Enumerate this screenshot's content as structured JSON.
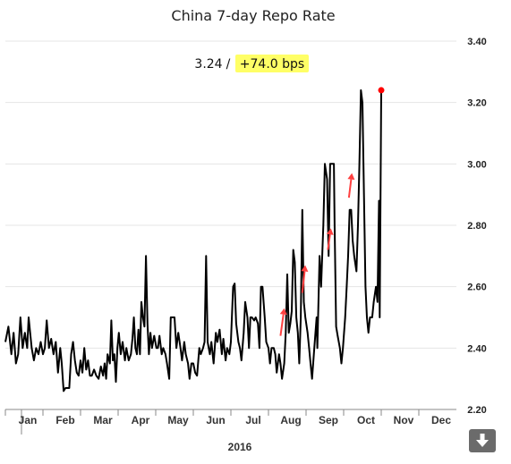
{
  "chart_data": {
    "type": "line",
    "title": "China 7-day Repo Rate",
    "readout": {
      "value": "3.24",
      "separator": "/",
      "change": "+74.0 bps"
    },
    "x_year_label": "2016",
    "x_tick_labels": [
      "Jan",
      "Feb",
      "Mar",
      "Apr",
      "May",
      "Jun",
      "Jul",
      "Aug",
      "Sep",
      "Oct",
      "Nov",
      "Dec"
    ],
    "y_tick_labels": [
      "2.20",
      "2.40",
      "2.60",
      "2.80",
      "3.00",
      "3.20",
      "3.40"
    ],
    "ylim": [
      2.2,
      3.4
    ],
    "xlim": [
      0,
      12
    ],
    "grid": true,
    "highlight_color": "#ffff66",
    "line_color": "#000000",
    "marker_color": "#ff0000",
    "arrow_color": "#ff4040",
    "series": [
      {
        "points": [
          [
            0.0,
            2.42
          ],
          [
            0.08,
            2.47
          ],
          [
            0.16,
            2.38
          ],
          [
            0.22,
            2.45
          ],
          [
            0.28,
            2.35
          ],
          [
            0.34,
            2.38
          ],
          [
            0.4,
            2.5
          ],
          [
            0.46,
            2.4
          ],
          [
            0.52,
            2.45
          ],
          [
            0.58,
            2.4
          ],
          [
            0.62,
            2.5
          ],
          [
            0.7,
            2.4
          ],
          [
            0.76,
            2.36
          ],
          [
            0.82,
            2.4
          ],
          [
            0.88,
            2.38
          ],
          [
            0.94,
            2.42
          ],
          [
            1.0,
            2.38
          ],
          [
            1.05,
            2.4
          ],
          [
            1.1,
            2.49
          ],
          [
            1.16,
            2.4
          ],
          [
            1.22,
            2.43
          ],
          [
            1.28,
            2.38
          ],
          [
            1.34,
            2.42
          ],
          [
            1.4,
            2.32
          ],
          [
            1.46,
            2.4
          ],
          [
            1.5,
            2.35
          ],
          [
            1.55,
            2.26
          ],
          [
            1.6,
            2.27
          ],
          [
            1.66,
            2.27
          ],
          [
            1.7,
            2.27
          ],
          [
            1.75,
            2.38
          ],
          [
            1.8,
            2.42
          ],
          [
            1.85,
            2.36
          ],
          [
            1.9,
            2.32
          ],
          [
            1.95,
            2.31
          ],
          [
            2.0,
            2.36
          ],
          [
            2.05,
            2.32
          ],
          [
            2.1,
            2.4
          ],
          [
            2.15,
            2.33
          ],
          [
            2.2,
            2.36
          ],
          [
            2.25,
            2.31
          ],
          [
            2.3,
            2.31
          ],
          [
            2.36,
            2.33
          ],
          [
            2.42,
            2.31
          ],
          [
            2.48,
            2.3
          ],
          [
            2.54,
            2.34
          ],
          [
            2.6,
            2.31
          ],
          [
            2.64,
            2.35
          ],
          [
            2.68,
            2.3
          ],
          [
            2.72,
            2.38
          ],
          [
            2.78,
            2.35
          ],
          [
            2.82,
            2.49
          ],
          [
            2.86,
            2.36
          ],
          [
            2.9,
            2.38
          ],
          [
            2.94,
            2.29
          ],
          [
            2.98,
            2.4
          ],
          [
            3.02,
            2.45
          ],
          [
            3.07,
            2.38
          ],
          [
            3.12,
            2.42
          ],
          [
            3.18,
            2.36
          ],
          [
            3.22,
            2.4
          ],
          [
            3.28,
            2.36
          ],
          [
            3.34,
            2.38
          ],
          [
            3.38,
            2.43
          ],
          [
            3.42,
            2.5
          ],
          [
            3.46,
            2.4
          ],
          [
            3.5,
            2.38
          ],
          [
            3.54,
            2.46
          ],
          [
            3.58,
            2.38
          ],
          [
            3.62,
            2.55
          ],
          [
            3.66,
            2.5
          ],
          [
            3.7,
            2.47
          ],
          [
            3.74,
            2.7
          ],
          [
            3.78,
            2.48
          ],
          [
            3.82,
            2.38
          ],
          [
            3.86,
            2.45
          ],
          [
            3.9,
            2.4
          ],
          [
            3.96,
            2.44
          ],
          [
            4.02,
            2.4
          ],
          [
            4.06,
            2.4
          ],
          [
            4.1,
            2.44
          ],
          [
            4.16,
            2.38
          ],
          [
            4.2,
            2.4
          ],
          [
            4.26,
            2.38
          ],
          [
            4.3,
            2.35
          ],
          [
            4.36,
            2.3
          ],
          [
            4.4,
            2.5
          ],
          [
            4.46,
            2.5
          ],
          [
            4.5,
            2.5
          ],
          [
            4.55,
            2.4
          ],
          [
            4.6,
            2.45
          ],
          [
            4.66,
            2.4
          ],
          [
            4.7,
            2.36
          ],
          [
            4.76,
            2.42
          ],
          [
            4.8,
            2.38
          ],
          [
            4.86,
            2.35
          ],
          [
            4.9,
            2.3
          ],
          [
            4.95,
            2.35
          ],
          [
            5.0,
            2.35
          ],
          [
            5.05,
            2.32
          ],
          [
            5.1,
            2.31
          ],
          [
            5.16,
            2.4
          ],
          [
            5.2,
            2.38
          ],
          [
            5.26,
            2.4
          ],
          [
            5.3,
            2.42
          ],
          [
            5.34,
            2.7
          ],
          [
            5.38,
            2.42
          ],
          [
            5.44,
            2.38
          ],
          [
            5.48,
            2.42
          ],
          [
            5.54,
            2.35
          ],
          [
            5.6,
            2.45
          ],
          [
            5.64,
            2.42
          ],
          [
            5.7,
            2.46
          ],
          [
            5.76,
            2.38
          ],
          [
            5.8,
            2.43
          ],
          [
            5.86,
            2.36
          ],
          [
            5.9,
            2.4
          ],
          [
            5.96,
            2.38
          ],
          [
            6.0,
            2.42
          ],
          [
            6.06,
            2.6
          ],
          [
            6.1,
            2.61
          ],
          [
            6.14,
            2.48
          ],
          [
            6.2,
            2.42
          ],
          [
            6.24,
            2.4
          ],
          [
            6.28,
            2.36
          ],
          [
            6.34,
            2.45
          ],
          [
            6.38,
            2.55
          ],
          [
            6.44,
            2.5
          ],
          [
            6.48,
            2.4
          ],
          [
            6.52,
            2.5
          ],
          [
            6.56,
            2.5
          ],
          [
            6.62,
            2.49
          ],
          [
            6.66,
            2.5
          ],
          [
            6.72,
            2.48
          ],
          [
            6.76,
            2.4
          ],
          [
            6.8,
            2.6
          ],
          [
            6.84,
            2.6
          ],
          [
            6.9,
            2.5
          ],
          [
            6.94,
            2.42
          ],
          [
            7.0,
            2.4
          ],
          [
            7.04,
            2.35
          ],
          [
            7.08,
            2.4
          ],
          [
            7.14,
            2.4
          ],
          [
            7.18,
            2.38
          ],
          [
            7.22,
            2.32
          ],
          [
            7.28,
            2.38
          ],
          [
            7.32,
            2.35
          ],
          [
            7.36,
            2.3
          ],
          [
            7.42,
            2.35
          ],
          [
            7.46,
            2.45
          ],
          [
            7.5,
            2.64
          ],
          [
            7.54,
            2.45
          ],
          [
            7.58,
            2.48
          ],
          [
            7.62,
            2.52
          ],
          [
            7.66,
            2.72
          ],
          [
            7.7,
            2.68
          ],
          [
            7.74,
            2.5
          ],
          [
            7.78,
            2.45
          ],
          [
            7.82,
            2.35
          ],
          [
            7.86,
            2.5
          ],
          [
            7.9,
            2.85
          ],
          [
            7.94,
            2.55
          ],
          [
            7.98,
            2.5
          ],
          [
            8.04,
            2.45
          ],
          [
            8.08,
            2.4
          ],
          [
            8.12,
            2.35
          ],
          [
            8.16,
            2.3
          ],
          [
            8.22,
            2.4
          ],
          [
            8.28,
            2.5
          ],
          [
            8.3,
            2.4
          ],
          [
            8.36,
            2.7
          ],
          [
            8.4,
            2.6
          ],
          [
            8.46,
            2.8
          ],
          [
            8.5,
            3.0
          ],
          [
            8.56,
            2.95
          ],
          [
            8.6,
            2.7
          ],
          [
            8.64,
            3.0
          ],
          [
            8.7,
            3.0
          ],
          [
            8.74,
            3.0
          ],
          [
            8.76,
            2.8
          ],
          [
            8.8,
            2.47
          ],
          [
            8.84,
            2.44
          ],
          [
            8.9,
            2.4
          ],
          [
            8.94,
            2.35
          ],
          [
            8.98,
            2.4
          ],
          [
            9.04,
            2.5
          ],
          [
            9.08,
            2.6
          ],
          [
            9.12,
            2.7
          ],
          [
            9.16,
            2.85
          ],
          [
            9.2,
            2.85
          ],
          [
            9.24,
            2.75
          ],
          [
            9.28,
            2.7
          ],
          [
            9.34,
            2.65
          ],
          [
            9.38,
            2.8
          ],
          [
            9.42,
            3.0
          ],
          [
            9.46,
            3.24
          ],
          [
            9.5,
            3.2
          ],
          [
            9.54,
            2.9
          ],
          [
            9.58,
            2.6
          ],
          [
            9.62,
            2.5
          ],
          [
            9.66,
            2.45
          ],
          [
            9.7,
            2.5
          ],
          [
            9.76,
            2.5
          ],
          [
            9.8,
            2.55
          ],
          [
            9.86,
            2.6
          ],
          [
            9.9,
            2.55
          ],
          [
            9.94,
            2.88
          ],
          [
            9.96,
            2.5
          ],
          [
            10.0,
            3.24
          ]
        ]
      }
    ],
    "annotations": [
      {
        "type": "arrow",
        "from": [
          7.32,
          2.44
        ],
        "to": [
          7.42,
          2.53
        ]
      },
      {
        "type": "arrow",
        "from": [
          7.9,
          2.58
        ],
        "to": [
          7.98,
          2.67
        ]
      },
      {
        "type": "arrow",
        "from": [
          8.58,
          2.72
        ],
        "to": [
          8.66,
          2.79
        ]
      },
      {
        "type": "arrow",
        "from": [
          9.14,
          2.89
        ],
        "to": [
          9.22,
          2.97
        ]
      }
    ]
  },
  "toolbar": {
    "download_icon": "download-arrow-icon"
  }
}
